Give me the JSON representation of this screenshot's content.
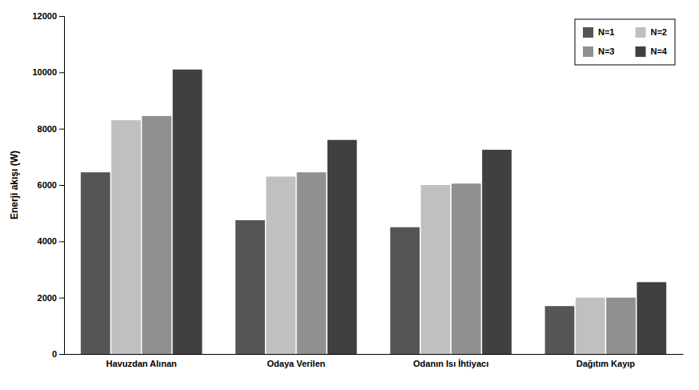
{
  "chart_data": {
    "type": "bar",
    "categories": [
      "Havuzdan Alınan",
      "Odaya Verilen",
      "Odanın Isı İhtiyacı",
      "Dağıtım Kayıp"
    ],
    "series": [
      {
        "name": "N=1",
        "color": "#555555",
        "values": [
          6450,
          4750,
          4500,
          1700
        ]
      },
      {
        "name": "N=2",
        "color": "#c0c0c0",
        "values": [
          8300,
          6300,
          6000,
          2000
        ]
      },
      {
        "name": "N=3",
        "color": "#909090",
        "values": [
          8450,
          6450,
          6050,
          2000
        ]
      },
      {
        "name": "N=4",
        "color": "#404040",
        "values": [
          10100,
          7600,
          7250,
          2550
        ]
      }
    ],
    "ylabel": "Enerji akışı (W)",
    "ylim": [
      0,
      12000
    ],
    "yticks": [
      0,
      2000,
      4000,
      6000,
      8000,
      10000,
      12000
    ],
    "grid": false,
    "legend": "upper right"
  }
}
